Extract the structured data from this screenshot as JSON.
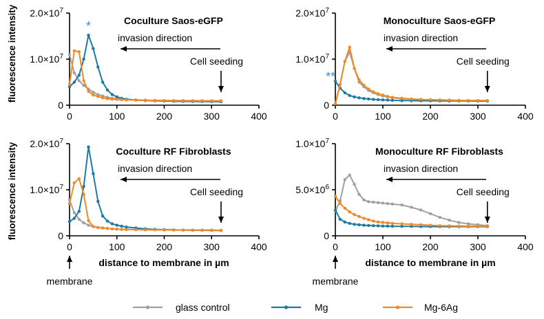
{
  "colors": {
    "glass_control": "#a0a0a0",
    "mg": "#1a7aa3",
    "mg6ag": "#ef8a26",
    "star": "#3e8ac9"
  },
  "shared": {
    "y_axis_label": "fluorescence intensity",
    "x_axis_label": "distance to membrane in µm",
    "membrane_label": "membrane",
    "x_ticks": [
      "0",
      "100",
      "200",
      "300",
      "400"
    ]
  },
  "legend": [
    {
      "key": "glass_control",
      "label": "glass control"
    },
    {
      "key": "mg",
      "label": "Mg"
    },
    {
      "key": "mg6ag",
      "label": "Mg-6Ag"
    }
  ],
  "chart_data": [
    {
      "type": "line",
      "title": "Coculture Saos-eGFP",
      "xlabel": "distance to membrane in µm",
      "ylabel": "fluorescence intensity",
      "xlim": [
        0,
        400
      ],
      "ylim": [
        0,
        20000000
      ],
      "y_ticks": [
        {
          "v": 0,
          "base": "0",
          "exp": ""
        },
        {
          "v": 10000000,
          "base": "1.0×10",
          "exp": "7"
        },
        {
          "v": 20000000,
          "base": "2.0×10",
          "exp": "7"
        }
      ],
      "annotation_direction": "invasion direction",
      "annotation_seeding": "Cell seeding",
      "seeding_x": 320,
      "marker_text": "*",
      "marker_at": [
        40,
        16300000
      ],
      "series": [
        {
          "name": "glass control",
          "key": "glass_control",
          "x": [
            0,
            10,
            20,
            30,
            40,
            50,
            60,
            70,
            80,
            90,
            100,
            110,
            120,
            140,
            160,
            180,
            200,
            220,
            240,
            260,
            280,
            300,
            320
          ],
          "y": [
            11000000,
            7000000,
            5300000,
            4300000,
            3500000,
            2800000,
            2300000,
            2000000,
            1700000,
            1500000,
            1400000,
            1300000,
            1250000,
            1150000,
            1100000,
            1050000,
            1020000,
            1000000,
            1000000,
            980000,
            970000,
            960000,
            950000
          ]
        },
        {
          "name": "Mg",
          "key": "mg",
          "x": [
            0,
            10,
            20,
            30,
            40,
            50,
            60,
            70,
            80,
            90,
            100,
            110,
            120,
            140,
            160,
            180,
            200,
            220,
            240,
            260,
            280,
            300,
            320
          ],
          "y": [
            4000000,
            5000000,
            6500000,
            10000000,
            15200000,
            12300000,
            8300000,
            5000000,
            3300000,
            2300000,
            1800000,
            1500000,
            1300000,
            1100000,
            1000000,
            950000,
            900000,
            850000,
            820000,
            800000,
            790000,
            780000,
            750000
          ]
        },
        {
          "name": "Mg-6Ag",
          "key": "mg6ag",
          "x": [
            0,
            10,
            20,
            30,
            40,
            50,
            60,
            70,
            80,
            90,
            100,
            110,
            120,
            140,
            160,
            180,
            200,
            220,
            240,
            260,
            280,
            300,
            320
          ],
          "y": [
            4500000,
            11800000,
            11600000,
            5300000,
            3000000,
            2200000,
            1900000,
            1600000,
            1400000,
            1300000,
            1250000,
            1200000,
            1150000,
            1100000,
            1050000,
            1030000,
            1000000,
            980000,
            960000,
            950000,
            940000,
            930000,
            900000
          ]
        }
      ]
    },
    {
      "type": "line",
      "title": "Monoculture Saos-eGFP",
      "xlabel": "distance to membrane in µm",
      "ylabel": "fluorescence intensity",
      "xlim": [
        0,
        400
      ],
      "ylim": [
        0,
        20000000
      ],
      "y_ticks": [
        {
          "v": 0,
          "base": "0",
          "exp": ""
        },
        {
          "v": 10000000,
          "base": "1.0×10",
          "exp": "7"
        },
        {
          "v": 20000000,
          "base": "2.0×10",
          "exp": "7"
        }
      ],
      "annotation_direction": "invasion direction",
      "annotation_seeding": "Cell seeding",
      "seeding_x": 320,
      "marker_text": "**",
      "marker_at": [
        -10,
        5300000
      ],
      "series": [
        {
          "name": "glass control",
          "key": "glass_control",
          "x": [
            0,
            10,
            20,
            30,
            40,
            50,
            60,
            70,
            80,
            90,
            100,
            110,
            120,
            140,
            160,
            180,
            200,
            220,
            240,
            260,
            280,
            300,
            320
          ],
          "y": [
            300000,
            4500000,
            9500000,
            11500000,
            8000000,
            5000000,
            4000000,
            3200000,
            2700000,
            2300000,
            2000000,
            1800000,
            1600000,
            1400000,
            1300000,
            1200000,
            1150000,
            1100000,
            1050000,
            1020000,
            1000000,
            1000000,
            1000000
          ]
        },
        {
          "name": "Mg",
          "key": "mg",
          "x": [
            0,
            10,
            20,
            30,
            40,
            50,
            60,
            70,
            80,
            90,
            100,
            110,
            120,
            140,
            160,
            180,
            200,
            220,
            240,
            260,
            280,
            300,
            320
          ],
          "y": [
            5200000,
            3700000,
            2700000,
            2100000,
            1800000,
            1600000,
            1450000,
            1350000,
            1250000,
            1200000,
            1150000,
            1100000,
            1050000,
            1000000,
            980000,
            960000,
            950000,
            940000,
            930000,
            920000,
            910000,
            900000,
            900000
          ]
        },
        {
          "name": "Mg-6Ag",
          "key": "mg6ag",
          "x": [
            0,
            10,
            20,
            30,
            40,
            50,
            60,
            70,
            80,
            90,
            100,
            110,
            120,
            140,
            160,
            180,
            200,
            220,
            240,
            260,
            280,
            300,
            320
          ],
          "y": [
            300000,
            4500000,
            9500000,
            12600000,
            8000000,
            5500000,
            4300000,
            3500000,
            2900000,
            2500000,
            2200000,
            1900000,
            1700000,
            1500000,
            1350000,
            1250000,
            1200000,
            1150000,
            1100000,
            1050000,
            1020000,
            1000000,
            1000000
          ]
        }
      ]
    },
    {
      "type": "line",
      "title": "Coculture RF Fibroblasts",
      "xlabel": "distance to membrane in µm",
      "ylabel": "fluorescence intensity",
      "xlim": [
        0,
        400
      ],
      "ylim": [
        0,
        20000000
      ],
      "y_ticks": [
        {
          "v": 0,
          "base": "0",
          "exp": ""
        },
        {
          "v": 10000000,
          "base": "1.0×10",
          "exp": "7"
        },
        {
          "v": 20000000,
          "base": "2.0×10",
          "exp": "7"
        }
      ],
      "annotation_direction": "invasion direction",
      "annotation_seeding": "Cell seeding",
      "seeding_x": 320,
      "series": [
        {
          "name": "glass control",
          "key": "glass_control",
          "x": [
            0,
            10,
            20,
            30,
            40,
            50,
            60,
            70,
            80,
            90,
            100,
            110,
            120,
            140,
            160,
            180,
            200,
            220,
            240,
            260,
            280,
            300,
            320
          ],
          "y": [
            7800000,
            5000000,
            3600000,
            2800000,
            2300000,
            2000000,
            1800000,
            1700000,
            1600000,
            1500000,
            1450000,
            1400000,
            1380000,
            1350000,
            1320000,
            1300000,
            1280000,
            1260000,
            1250000,
            1240000,
            1230000,
            1220000,
            1200000
          ]
        },
        {
          "name": "Mg",
          "key": "mg",
          "x": [
            0,
            10,
            20,
            30,
            40,
            50,
            60,
            70,
            80,
            90,
            100,
            110,
            120,
            140,
            160,
            180,
            200,
            220,
            240,
            260,
            280,
            300,
            320
          ],
          "y": [
            3100000,
            3800000,
            5300000,
            10700000,
            19300000,
            13500000,
            7500000,
            4300000,
            3200000,
            2600000,
            2300000,
            2100000,
            1900000,
            1700000,
            1500000,
            1400000,
            1350000,
            1300000,
            1250000,
            1220000,
            1200000,
            1180000,
            1150000
          ]
        },
        {
          "name": "Mg-6Ag",
          "key": "mg6ag",
          "x": [
            0,
            10,
            20,
            30,
            40,
            50,
            60,
            70,
            80,
            90,
            100,
            110,
            120,
            140,
            160,
            180,
            200,
            220,
            240,
            260,
            280,
            300,
            320
          ],
          "y": [
            7000000,
            11500000,
            12400000,
            9000000,
            3300000,
            2000000,
            1800000,
            1700000,
            1600000,
            1500000,
            1450000,
            1400000,
            1380000,
            1350000,
            1320000,
            1300000,
            1280000,
            1260000,
            1250000,
            1240000,
            1230000,
            1220000,
            1200000
          ]
        }
      ]
    },
    {
      "type": "line",
      "title": "Monoculture RF Fibroblasts",
      "xlabel": "distance to membrane in µm",
      "ylabel": "fluorescence intensity",
      "xlim": [
        0,
        400
      ],
      "ylim": [
        0,
        10000000
      ],
      "y_ticks": [
        {
          "v": 0,
          "base": "0",
          "exp": ""
        },
        {
          "v": 5000000,
          "base": "5.0×10",
          "exp": "6"
        },
        {
          "v": 10000000,
          "base": "1.0×10",
          "exp": "7"
        }
      ],
      "annotation_direction": "invasion direction",
      "annotation_seeding": "Cell seeding",
      "seeding_x": 320,
      "series": [
        {
          "name": "glass control",
          "key": "glass_control",
          "x": [
            0,
            10,
            20,
            30,
            40,
            50,
            60,
            70,
            80,
            90,
            100,
            110,
            120,
            140,
            160,
            180,
            200,
            220,
            240,
            260,
            280,
            300,
            320
          ],
          "y": [
            2700000,
            3800000,
            6100000,
            6600000,
            5600000,
            4500000,
            3900000,
            3700000,
            3650000,
            3600000,
            3550000,
            3500000,
            3450000,
            3350000,
            3100000,
            2800000,
            2400000,
            2000000,
            1700000,
            1450000,
            1300000,
            1200000,
            1100000
          ]
        },
        {
          "name": "Mg",
          "key": "mg",
          "x": [
            0,
            10,
            20,
            30,
            40,
            50,
            60,
            70,
            80,
            90,
            100,
            110,
            120,
            140,
            160,
            180,
            200,
            220,
            240,
            260,
            280,
            300,
            320
          ],
          "y": [
            2800000,
            1800000,
            1500000,
            1350000,
            1250000,
            1200000,
            1150000,
            1120000,
            1100000,
            1080000,
            1060000,
            1050000,
            1040000,
            1030000,
            1020000,
            1010000,
            1000000,
            1000000,
            1000000,
            1000000,
            1000000,
            1000000,
            1000000
          ]
        },
        {
          "name": "Mg-6Ag",
          "key": "mg6ag",
          "x": [
            0,
            10,
            20,
            30,
            40,
            50,
            60,
            70,
            80,
            90,
            100,
            110,
            120,
            140,
            160,
            180,
            200,
            220,
            240,
            260,
            280,
            300,
            320
          ],
          "y": [
            4300000,
            3500000,
            3000000,
            2600000,
            2300000,
            2100000,
            1900000,
            1750000,
            1600000,
            1500000,
            1450000,
            1400000,
            1350000,
            1300000,
            1250000,
            1200000,
            1150000,
            1100000,
            1080000,
            1060000,
            1050000,
            1050000,
            1050000
          ]
        }
      ]
    }
  ]
}
